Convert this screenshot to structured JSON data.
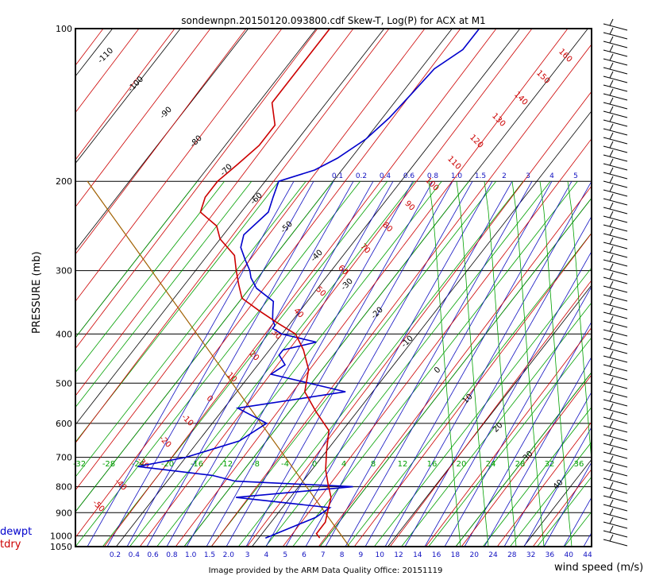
{
  "chart_data": {
    "type": "line",
    "title": "sondewnpn.20150120.093800.cdf    Skew-T, Log(P) for ACX at M1",
    "ylabel": "PRESSURE  (mb)",
    "xlabel_right": "wind speed (m/s)",
    "footer": "Image provided by the ARM Data Quality Office: 20151119",
    "pressure_ticks": [
      "100",
      "200",
      "300",
      "400",
      "500",
      "600",
      "700",
      "800",
      "900",
      "1000",
      "1050"
    ],
    "pressure_values": [
      100,
      200,
      300,
      400,
      500,
      600,
      700,
      800,
      900,
      1000,
      1050
    ],
    "ylim": [
      1050,
      100
    ],
    "yscale": "log",
    "temp_xlim": [
      -36,
      40
    ],
    "bottom_axis_labels": [
      "0.2",
      "0.4",
      "0.6",
      "0.8",
      "1.0",
      "1.5",
      "2.0",
      "3",
      "4",
      "5",
      "6",
      "7",
      "8",
      "9",
      "10",
      "12",
      "14",
      "16",
      "18",
      "20",
      "24",
      "28",
      "32",
      "36",
      "40",
      "44"
    ],
    "top_mixing_labels": [
      "0.1",
      "0.2",
      "0.4",
      "0.6",
      "0.8",
      "1.0",
      "1.5",
      "2",
      "3",
      "4",
      "5"
    ],
    "green_temp_labels": [
      "-32",
      "-28",
      "-24",
      "-20",
      "-16",
      "-12",
      "-8",
      "-4",
      "0",
      "4",
      "8",
      "12",
      "16",
      "20",
      "24",
      "28",
      "32",
      "36"
    ],
    "red_dry_adiabat_labels": [
      "160",
      "150",
      "140",
      "130",
      "120",
      "110",
      "100",
      "90",
      "80",
      "70",
      "60",
      "50",
      "40",
      "30",
      "20",
      "10",
      "0",
      "-10",
      "-20",
      "-30",
      "-40",
      "-50"
    ],
    "black_isotherm_labels": [
      "-110",
      "-100",
      "-90",
      "-80",
      "-70",
      "-60",
      "-50",
      "-40",
      "-30",
      "-20",
      "-10",
      "0",
      "10",
      "20",
      "30",
      "40"
    ],
    "series": [
      {
        "name": "dewpt",
        "color": "#0000cc",
        "x": [
          -36,
          -36,
          -38,
          -38.5,
          -39,
          -40,
          -42,
          -44,
          -48,
          -47,
          -46,
          -47,
          -46,
          -44,
          -42,
          -41,
          -39,
          -35,
          -34,
          -33,
          -32,
          -32,
          -30,
          -24,
          -28,
          -28,
          -26,
          -27,
          -14,
          -28,
          -22,
          -24,
          -30,
          -36,
          -24,
          -20,
          -2,
          -18,
          -3,
          -4,
          -9
        ],
        "p": [
          100,
          110,
          120,
          135,
          150,
          165,
          180,
          190,
          200,
          215,
          230,
          255,
          270,
          285,
          300,
          310,
          325,
          345,
          360,
          375,
          385,
          390,
          400,
          415,
          430,
          440,
          460,
          480,
          520,
          560,
          600,
          650,
          700,
          730,
          760,
          780,
          800,
          840,
          880,
          920,
          1010
        ]
      },
      {
        "name": "tdry",
        "color": "#cc0000",
        "x": [
          -58,
          -58,
          -58,
          -58,
          -55,
          -55,
          -56,
          -57,
          -57,
          -57,
          -56,
          -52,
          -50,
          -46,
          -44,
          -42,
          -40,
          -36,
          -32,
          -28,
          -25,
          -22,
          -20,
          -16,
          -12,
          -10,
          -8,
          -6,
          -4,
          -3,
          -2,
          -2,
          -1
        ],
        "p": [
          100,
          110,
          125,
          140,
          155,
          170,
          185,
          200,
          205,
          215,
          230,
          245,
          260,
          280,
          300,
          320,
          340,
          360,
          380,
          400,
          430,
          470,
          520,
          570,
          620,
          680,
          740,
          790,
          840,
          890,
          940,
          990,
          1010
        ]
      }
    ],
    "legend": [
      "dewpt",
      "tdry"
    ],
    "legend_colors": [
      "#0000cc",
      "#cc0000"
    ],
    "wind_barbs_levels": 60
  }
}
